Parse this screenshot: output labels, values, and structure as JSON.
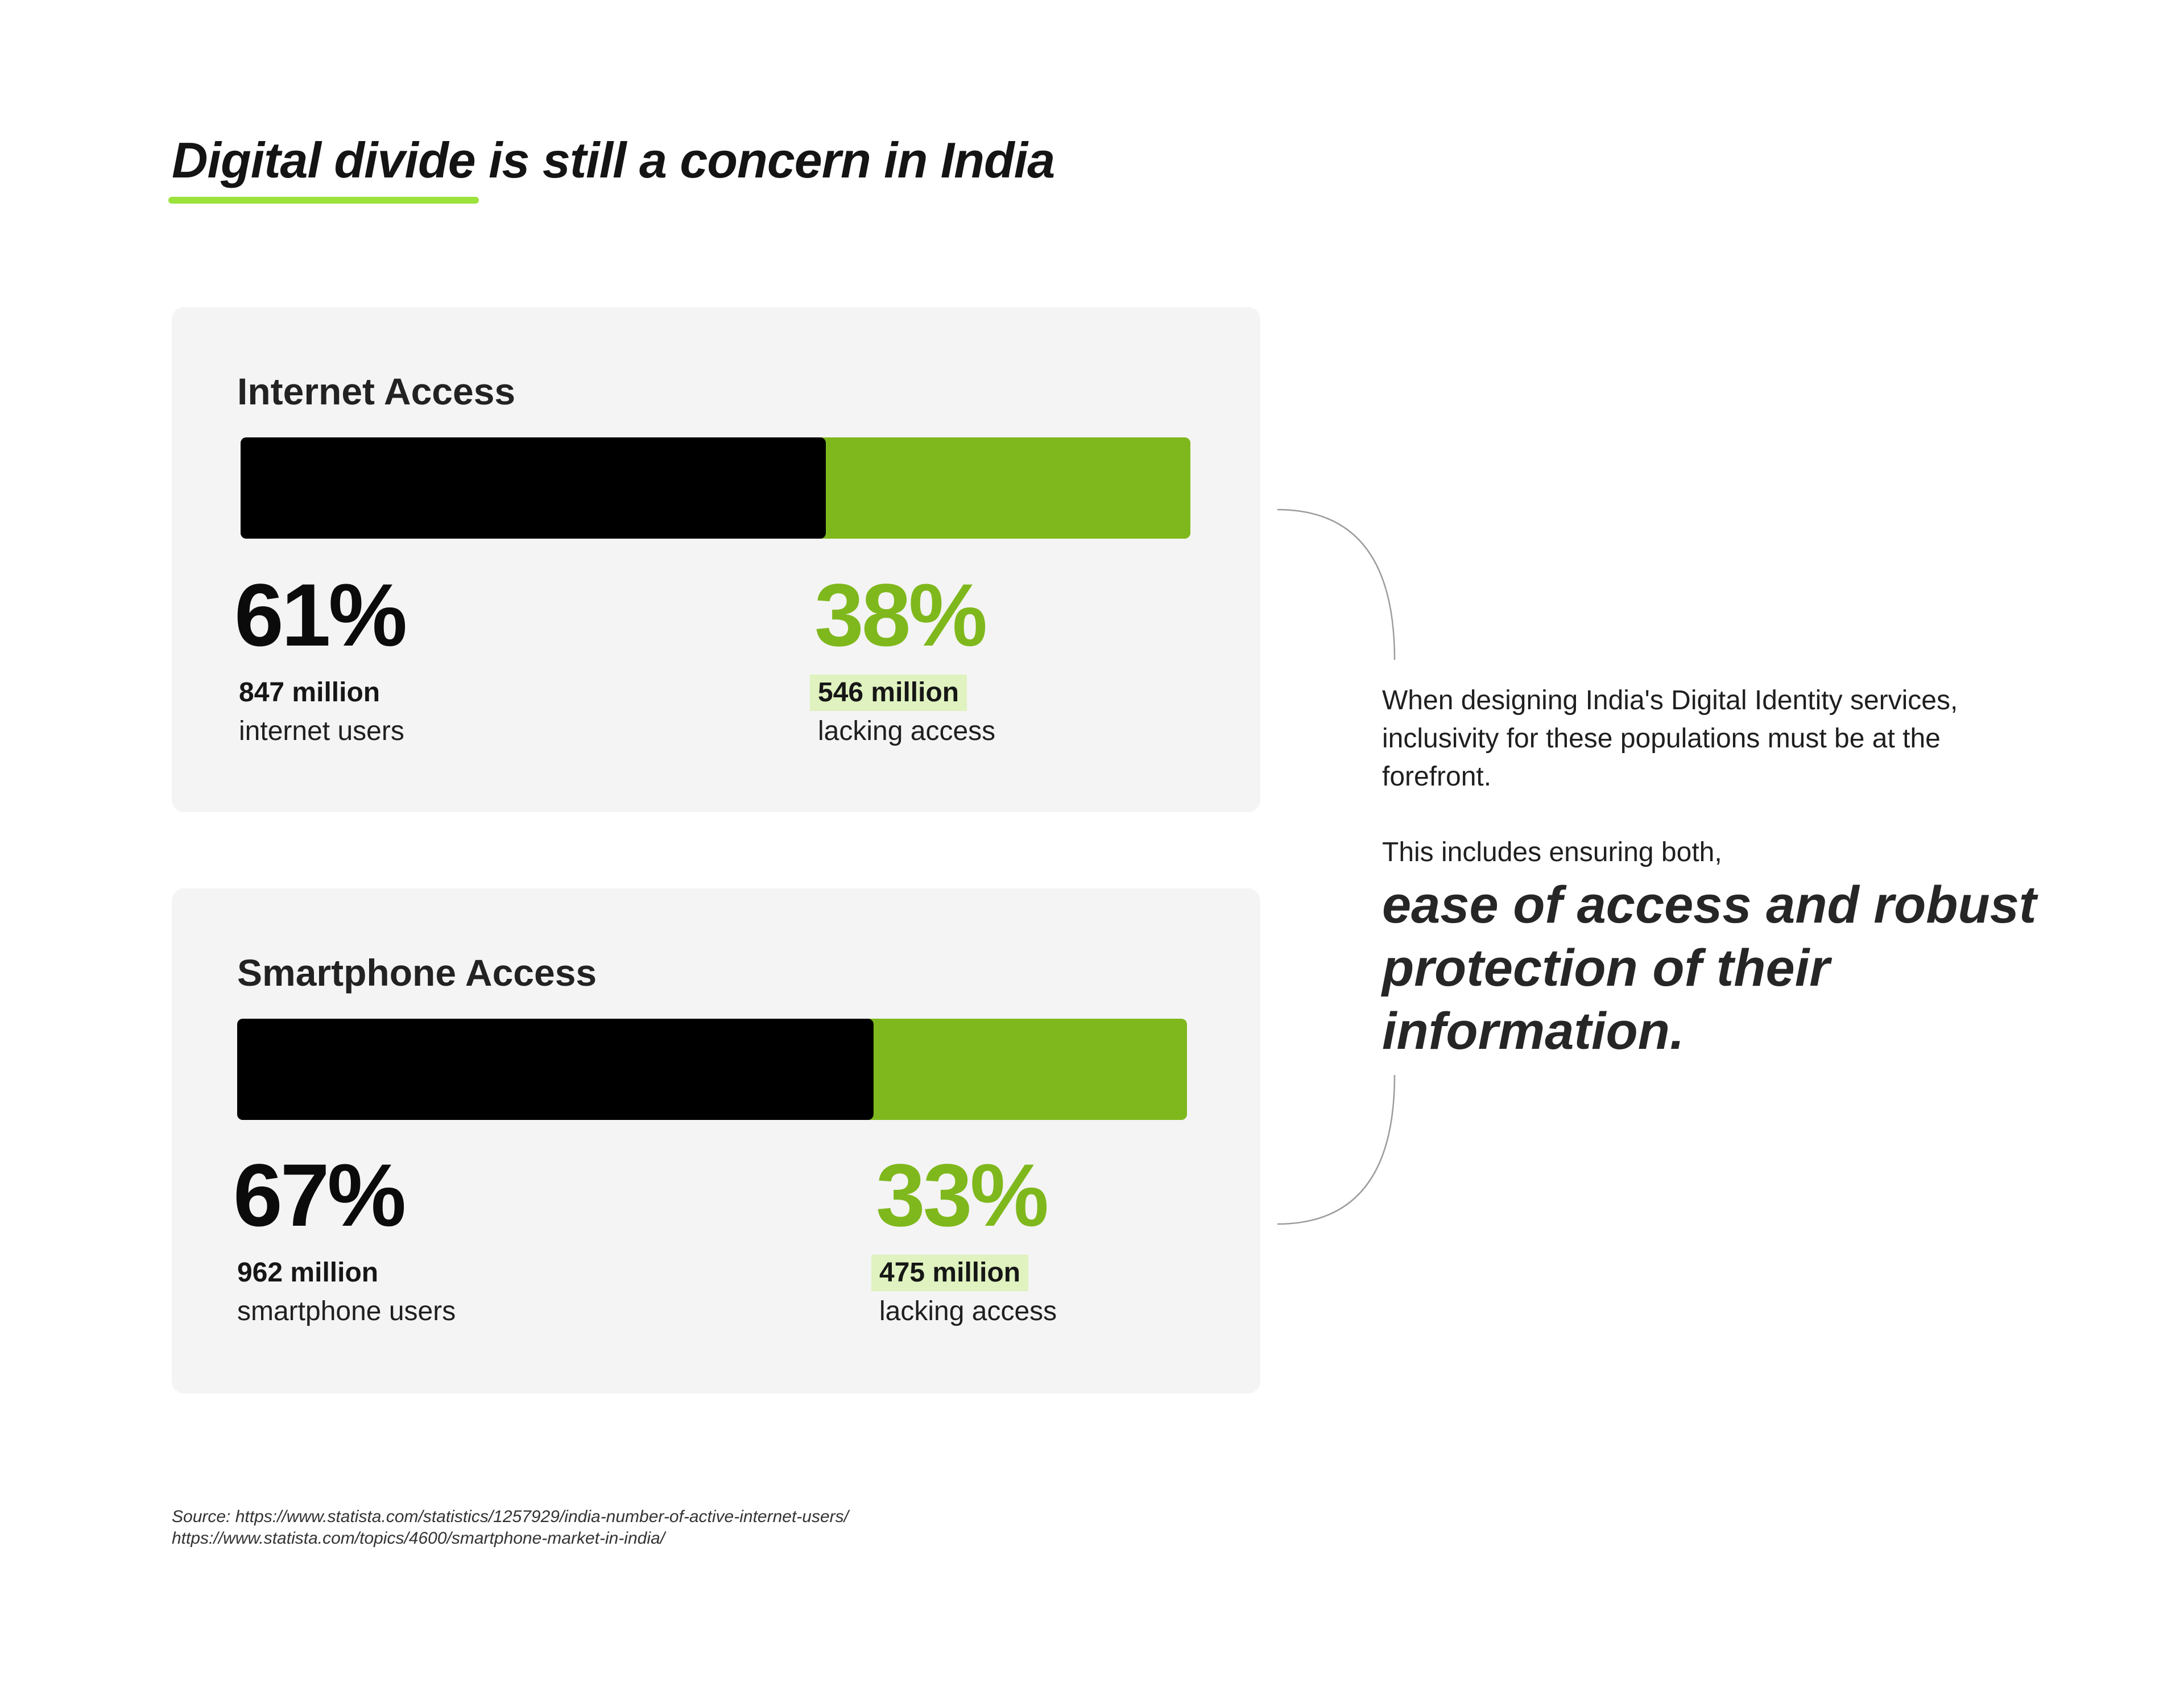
{
  "title": {
    "highlight": "Digital divide",
    "rest": " is still a concern in India",
    "accent_color": "#9be23c"
  },
  "chart_data": [
    {
      "type": "bar",
      "title": "Internet Access",
      "orientation": "horizontal-stacked",
      "series": [
        {
          "name": "internet users",
          "value_percent": 61,
          "count": "847 million",
          "color": "#000000"
        },
        {
          "name": "lacking access",
          "value_percent": 38,
          "count": "546 million",
          "color": "#7fb81c"
        }
      ],
      "labels": {
        "left_pct": "61%",
        "left_count": "847 million",
        "left_desc": "internet users",
        "right_pct": "38%",
        "right_count": "546 million",
        "right_desc": "lacking access"
      }
    },
    {
      "type": "bar",
      "title": "Smartphone Access",
      "orientation": "horizontal-stacked",
      "series": [
        {
          "name": "smartphone users",
          "value_percent": 67,
          "count": "962 million",
          "color": "#000000"
        },
        {
          "name": "lacking access",
          "value_percent": 33,
          "count": "475 million",
          "color": "#7fb81c"
        }
      ],
      "labels": {
        "left_pct": "67%",
        "left_count": "962 million",
        "left_desc": "smartphone users",
        "right_pct": "33%",
        "right_count": "475 million",
        "right_desc": "lacking access"
      }
    }
  ],
  "side": {
    "paragraph1": "When designing India's Digital Identity services, inclusivity for these populations must be at the forefront.",
    "paragraph2": "This includes ensuring both,",
    "emphasis": "ease of access and robust protection of their information."
  },
  "source": {
    "line1": "Source: https://www.statista.com/statistics/1257929/india-number-of-active-internet-users/",
    "line2": "https://www.statista.com/topics/4600/smartphone-market-in-india/"
  },
  "colors": {
    "card_bg": "#f4f4f4",
    "green": "#7fb81c",
    "tag_bg": "#dff2bf",
    "black": "#000000"
  }
}
